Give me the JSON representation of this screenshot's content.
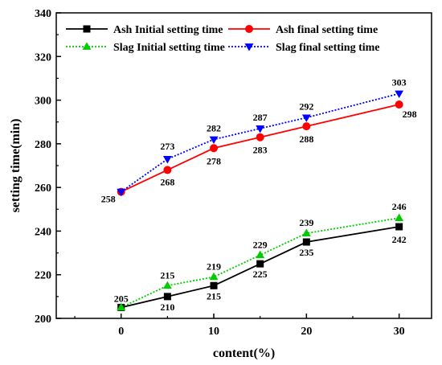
{
  "chart_data": {
    "type": "line",
    "title": "",
    "xlabel": "content(%)",
    "ylabel": "setting time(min)",
    "x": [
      0,
      5,
      10,
      15,
      20,
      30
    ],
    "xlim": [
      -7,
      33.5
    ],
    "ylim": [
      200,
      340
    ],
    "xticks": [
      0,
      10,
      20,
      30
    ],
    "xtick_labels": [
      "0",
      "10",
      "20",
      "30"
    ],
    "yticks": [
      200,
      220,
      240,
      260,
      280,
      300,
      320,
      340
    ],
    "ytick_labels": [
      "200",
      "220",
      "240",
      "260",
      "280",
      "300",
      "320",
      "340"
    ],
    "grid": false,
    "legend": "top, two columns",
    "series": [
      {
        "name": "Ash Initial setting time",
        "values": [
          205,
          210,
          215,
          225,
          235,
          242
        ],
        "labels": [
          "205",
          "210",
          "215",
          "225",
          "235",
          "242"
        ],
        "color": "#000000",
        "marker": "square",
        "line": "solid"
      },
      {
        "name": "Ash final setting time",
        "values": [
          258,
          268,
          278,
          283,
          288,
          298
        ],
        "labels": [
          "258",
          "268",
          "278",
          "283",
          "288",
          "298"
        ],
        "color": "#ff0000",
        "marker": "circle",
        "line": "solid"
      },
      {
        "name": "Slag Initial setting time",
        "values": [
          205,
          215,
          219,
          229,
          239,
          246
        ],
        "labels": [
          "",
          "215",
          "219",
          "229",
          "239",
          "246"
        ],
        "color": "#00cc00",
        "marker": "triangle-up",
        "line": "dotted"
      },
      {
        "name": "Slag final setting time",
        "values": [
          258,
          273,
          282,
          287,
          292,
          303
        ],
        "labels": [
          "",
          "273",
          "282",
          "287",
          "292",
          "303"
        ],
        "color": "#0000ff",
        "marker": "triangle-down",
        "line": "dotted"
      }
    ]
  }
}
